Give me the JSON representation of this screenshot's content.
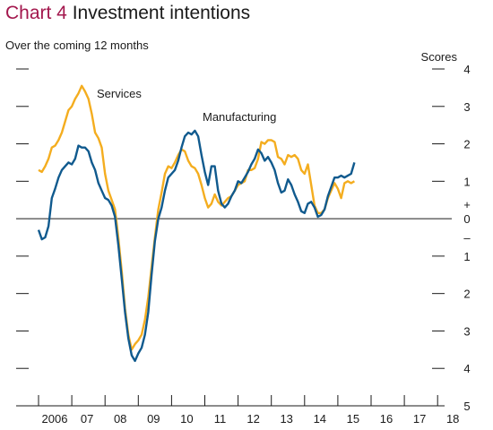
{
  "header": {
    "chart_number": "Chart 4",
    "title": "Investment intentions",
    "subtitle": "Over the coming 12 months"
  },
  "colors": {
    "services": "#f4ad1f",
    "manufacturing": "#105a8e",
    "chart_number": "#a3174d"
  },
  "chart_data": {
    "type": "line",
    "title": "Investment intentions",
    "subtitle": "Over the coming 12 months",
    "ylabel": "Scores",
    "ylim": [
      -5,
      4
    ],
    "y_ticks": [
      -5,
      -4,
      -3,
      -2,
      -1,
      0,
      1,
      2,
      3,
      4
    ],
    "y_tick_labels": [
      "5",
      "4",
      "3",
      "2",
      "1",
      "0",
      "1",
      "2",
      "3",
      "4"
    ],
    "y_sign_label": "+\n–",
    "xlim": [
      2005.5,
      2018.35
    ],
    "x_ticks": [
      2006,
      2007,
      2008,
      2009,
      2010,
      2011,
      2012,
      2013,
      2014,
      2015,
      2016,
      2017,
      2018
    ],
    "x_tick_labels": [
      "2006",
      "07",
      "08",
      "09",
      "10",
      "11",
      "12",
      "13",
      "14",
      "15",
      "16",
      "17",
      "18"
    ],
    "zero_line": true,
    "series": [
      {
        "name": "Services",
        "label_text": "Services",
        "color": "#f4ad1f",
        "points": [
          [
            2005.0,
            1.3
          ],
          [
            2005.1,
            1.25
          ],
          [
            2005.2,
            1.4
          ],
          [
            2005.3,
            1.6
          ],
          [
            2005.4,
            1.9
          ],
          [
            2005.5,
            1.95
          ],
          [
            2005.6,
            2.1
          ],
          [
            2005.7,
            2.3
          ],
          [
            2005.8,
            2.6
          ],
          [
            2005.9,
            2.9
          ],
          [
            2006.0,
            3.0
          ],
          [
            2006.1,
            3.2
          ],
          [
            2006.2,
            3.35
          ],
          [
            2006.3,
            3.55
          ],
          [
            2006.4,
            3.4
          ],
          [
            2006.5,
            3.2
          ],
          [
            2006.6,
            2.8
          ],
          [
            2006.7,
            2.3
          ],
          [
            2006.8,
            2.15
          ],
          [
            2006.9,
            1.9
          ],
          [
            2007.0,
            1.2
          ],
          [
            2007.1,
            0.75
          ],
          [
            2007.2,
            0.5
          ],
          [
            2007.3,
            0.25
          ],
          [
            2007.4,
            -0.5
          ],
          [
            2007.5,
            -1.4
          ],
          [
            2007.6,
            -2.4
          ],
          [
            2007.7,
            -3.1
          ],
          [
            2007.8,
            -3.5
          ],
          [
            2007.9,
            -3.35
          ],
          [
            2008.0,
            -3.25
          ],
          [
            2008.1,
            -3.1
          ],
          [
            2008.2,
            -2.7
          ],
          [
            2008.3,
            -2.1
          ],
          [
            2008.4,
            -1.3
          ],
          [
            2008.5,
            -0.5
          ],
          [
            2008.6,
            0.25
          ],
          [
            2008.7,
            0.7
          ],
          [
            2008.8,
            1.2
          ],
          [
            2008.9,
            1.4
          ],
          [
            2009.0,
            1.35
          ],
          [
            2009.1,
            1.5
          ],
          [
            2009.2,
            1.7
          ],
          [
            2009.3,
            1.85
          ],
          [
            2009.4,
            1.8
          ],
          [
            2009.5,
            1.55
          ],
          [
            2009.6,
            1.4
          ],
          [
            2009.7,
            1.35
          ],
          [
            2009.8,
            1.2
          ],
          [
            2009.9,
            0.9
          ],
          [
            2010.0,
            0.55
          ],
          [
            2010.1,
            0.3
          ],
          [
            2010.2,
            0.4
          ],
          [
            2010.3,
            0.65
          ],
          [
            2010.4,
            0.45
          ],
          [
            2010.5,
            0.35
          ],
          [
            2010.6,
            0.45
          ],
          [
            2010.7,
            0.55
          ],
          [
            2010.8,
            0.6
          ],
          [
            2010.9,
            0.75
          ],
          [
            2011.0,
            0.9
          ],
          [
            2011.1,
            0.95
          ],
          [
            2011.2,
            1.0
          ],
          [
            2011.3,
            1.3
          ],
          [
            2011.4,
            1.3
          ],
          [
            2011.5,
            1.35
          ],
          [
            2011.6,
            1.6
          ],
          [
            2011.7,
            2.05
          ],
          [
            2011.8,
            2.0
          ],
          [
            2011.9,
            2.1
          ],
          [
            2012.0,
            2.1
          ],
          [
            2012.1,
            2.05
          ],
          [
            2012.2,
            1.65
          ],
          [
            2012.3,
            1.6
          ],
          [
            2012.4,
            1.45
          ],
          [
            2012.5,
            1.7
          ],
          [
            2012.6,
            1.65
          ],
          [
            2012.7,
            1.7
          ],
          [
            2012.8,
            1.6
          ],
          [
            2012.9,
            1.3
          ],
          [
            2013.0,
            1.2
          ],
          [
            2013.1,
            1.45
          ],
          [
            2013.2,
            0.9
          ],
          [
            2013.3,
            0.35
          ],
          [
            2013.4,
            0.15
          ],
          [
            2013.5,
            0.15
          ],
          [
            2013.6,
            0.25
          ],
          [
            2013.7,
            0.55
          ],
          [
            2013.8,
            0.75
          ],
          [
            2013.9,
            0.95
          ],
          [
            2014.0,
            0.8
          ],
          [
            2014.1,
            0.55
          ],
          [
            2014.2,
            0.95
          ],
          [
            2014.3,
            1.0
          ],
          [
            2014.4,
            0.95
          ],
          [
            2014.5,
            1.0
          ]
        ]
      },
      {
        "name": "Manufacturing",
        "label_text": "Manufacturing",
        "color": "#105a8e",
        "points": [
          [
            2005.0,
            -0.3
          ],
          [
            2005.1,
            -0.55
          ],
          [
            2005.2,
            -0.5
          ],
          [
            2005.3,
            -0.2
          ],
          [
            2005.4,
            0.55
          ],
          [
            2005.5,
            0.8
          ],
          [
            2005.6,
            1.1
          ],
          [
            2005.7,
            1.3
          ],
          [
            2005.8,
            1.4
          ],
          [
            2005.9,
            1.5
          ],
          [
            2006.0,
            1.45
          ],
          [
            2006.1,
            1.6
          ],
          [
            2006.2,
            1.95
          ],
          [
            2006.3,
            1.9
          ],
          [
            2006.4,
            1.9
          ],
          [
            2006.5,
            1.8
          ],
          [
            2006.6,
            1.5
          ],
          [
            2006.7,
            1.3
          ],
          [
            2006.8,
            0.95
          ],
          [
            2006.9,
            0.75
          ],
          [
            2007.0,
            0.55
          ],
          [
            2007.1,
            0.5
          ],
          [
            2007.2,
            0.35
          ],
          [
            2007.3,
            0.05
          ],
          [
            2007.4,
            -0.7
          ],
          [
            2007.5,
            -1.6
          ],
          [
            2007.6,
            -2.5
          ],
          [
            2007.7,
            -3.2
          ],
          [
            2007.8,
            -3.65
          ],
          [
            2007.9,
            -3.8
          ],
          [
            2008.0,
            -3.6
          ],
          [
            2008.1,
            -3.45
          ],
          [
            2008.2,
            -3.1
          ],
          [
            2008.3,
            -2.5
          ],
          [
            2008.4,
            -1.5
          ],
          [
            2008.5,
            -0.6
          ],
          [
            2008.6,
            0.0
          ],
          [
            2008.7,
            0.3
          ],
          [
            2008.8,
            0.75
          ],
          [
            2008.9,
            1.1
          ],
          [
            2009.0,
            1.2
          ],
          [
            2009.1,
            1.3
          ],
          [
            2009.2,
            1.55
          ],
          [
            2009.3,
            1.9
          ],
          [
            2009.4,
            2.2
          ],
          [
            2009.5,
            2.3
          ],
          [
            2009.6,
            2.25
          ],
          [
            2009.7,
            2.35
          ],
          [
            2009.8,
            2.2
          ],
          [
            2009.9,
            1.7
          ],
          [
            2010.0,
            1.25
          ],
          [
            2010.1,
            0.9
          ],
          [
            2010.2,
            1.4
          ],
          [
            2010.3,
            1.4
          ],
          [
            2010.4,
            0.75
          ],
          [
            2010.5,
            0.4
          ],
          [
            2010.6,
            0.3
          ],
          [
            2010.7,
            0.4
          ],
          [
            2010.8,
            0.6
          ],
          [
            2010.9,
            0.75
          ],
          [
            2011.0,
            1.0
          ],
          [
            2011.1,
            0.95
          ],
          [
            2011.2,
            1.1
          ],
          [
            2011.3,
            1.25
          ],
          [
            2011.4,
            1.45
          ],
          [
            2011.5,
            1.6
          ],
          [
            2011.6,
            1.85
          ],
          [
            2011.7,
            1.75
          ],
          [
            2011.8,
            1.55
          ],
          [
            2011.9,
            1.65
          ],
          [
            2012.0,
            1.5
          ],
          [
            2012.1,
            1.3
          ],
          [
            2012.2,
            0.95
          ],
          [
            2012.3,
            0.7
          ],
          [
            2012.4,
            0.75
          ],
          [
            2012.5,
            1.05
          ],
          [
            2012.6,
            0.9
          ],
          [
            2012.7,
            0.65
          ],
          [
            2012.8,
            0.45
          ],
          [
            2012.9,
            0.2
          ],
          [
            2013.0,
            0.15
          ],
          [
            2013.1,
            0.4
          ],
          [
            2013.2,
            0.45
          ],
          [
            2013.3,
            0.3
          ],
          [
            2013.4,
            0.05
          ],
          [
            2013.5,
            0.1
          ],
          [
            2013.6,
            0.25
          ],
          [
            2013.7,
            0.6
          ],
          [
            2013.8,
            0.85
          ],
          [
            2013.9,
            1.1
          ],
          [
            2014.0,
            1.1
          ],
          [
            2014.1,
            1.15
          ],
          [
            2014.2,
            1.1
          ],
          [
            2014.3,
            1.15
          ],
          [
            2014.4,
            1.2
          ],
          [
            2014.5,
            1.5
          ]
        ]
      }
    ]
  }
}
